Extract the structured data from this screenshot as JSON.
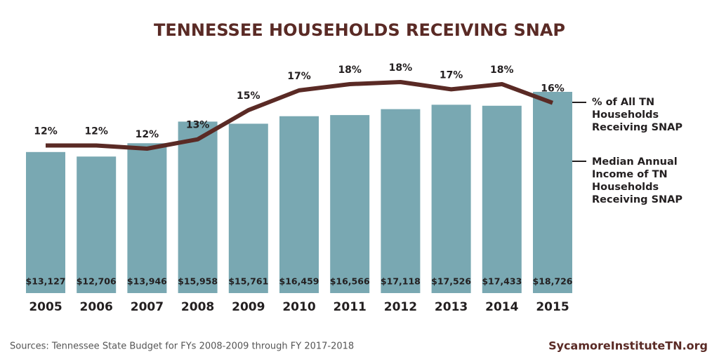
{
  "chart_data": {
    "type": "bar",
    "title": "TENNESSEE HOUSEHOLDS RECEIVING SNAP",
    "categories": [
      "2005",
      "2006",
      "2007",
      "2008",
      "2009",
      "2010",
      "2011",
      "2012",
      "2013",
      "2014",
      "2015"
    ],
    "series": [
      {
        "name": "Median Annual Income of TN Households Receiving SNAP",
        "type": "bar",
        "color": "#79a8b2",
        "values": [
          13127,
          12706,
          13946,
          15958,
          15761,
          16459,
          16566,
          17118,
          17526,
          17433,
          18726
        ],
        "value_labels": [
          "$13,127",
          "$12,706",
          "$13,946",
          "$15,958",
          "$15,761",
          "$16,459",
          "$16,566",
          "$17,118",
          "$17,526",
          "$17,433",
          "$18,726"
        ]
      },
      {
        "name": "% of All TN Households Receiving SNAP",
        "type": "line",
        "color": "#5a2a25",
        "values": [
          12.0,
          12.0,
          11.7,
          12.6,
          15.4,
          17.3,
          17.9,
          18.1,
          17.4,
          17.9,
          16.1
        ],
        "value_labels": [
          "12%",
          "12%",
          "12%",
          "13%",
          "15%",
          "17%",
          "18%",
          "18%",
          "17%",
          "18%",
          "16%"
        ]
      }
    ],
    "source": "Sources: Tennessee State Budget for FYs 2008-2009 through FY 2017-2018",
    "credit": "SycamoreInstituteTN.org"
  }
}
